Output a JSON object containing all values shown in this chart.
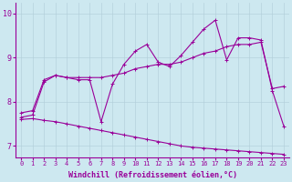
{
  "title": "",
  "xlabel": "Windchill (Refroidissement éolien,°C)",
  "ylabel": "",
  "background_color": "#cde8f0",
  "line_color": "#990099",
  "xlim": [
    -0.5,
    23.5
  ],
  "ylim": [
    6.75,
    10.25
  ],
  "yticks": [
    7,
    8,
    9,
    10
  ],
  "xticks": [
    0,
    1,
    2,
    3,
    4,
    5,
    6,
    7,
    8,
    9,
    10,
    11,
    12,
    13,
    14,
    15,
    16,
    17,
    18,
    19,
    20,
    21,
    22,
    23
  ],
  "grid_color": "#b0ccd8",
  "marker": "+",
  "marker_size": 3,
  "linewidth": 0.8,
  "tick_fontsize": 5.0,
  "xlabel_fontsize": 6.0,
  "upper_y": [
    7.75,
    7.8,
    8.5,
    8.6,
    8.55,
    8.55,
    8.55,
    8.55,
    8.6,
    8.65,
    8.75,
    8.8,
    8.85,
    8.85,
    8.9,
    9.0,
    9.1,
    9.15,
    9.25,
    9.3,
    9.3,
    9.35,
    8.3,
    8.35
  ],
  "zigzag_y": [
    7.65,
    7.7,
    8.45,
    8.6,
    8.55,
    8.5,
    8.5,
    7.55,
    8.4,
    8.85,
    9.15,
    9.3,
    8.9,
    8.8,
    9.05,
    9.35,
    9.65,
    9.85,
    8.95,
    9.45,
    9.45,
    9.4,
    8.25,
    7.45
  ],
  "lower_y": [
    7.6,
    7.62,
    7.58,
    7.55,
    7.5,
    7.45,
    7.4,
    7.35,
    7.3,
    7.25,
    7.2,
    7.15,
    7.1,
    7.05,
    7.0,
    6.97,
    6.95,
    6.93,
    6.91,
    6.89,
    6.87,
    6.85,
    6.83,
    6.81
  ]
}
